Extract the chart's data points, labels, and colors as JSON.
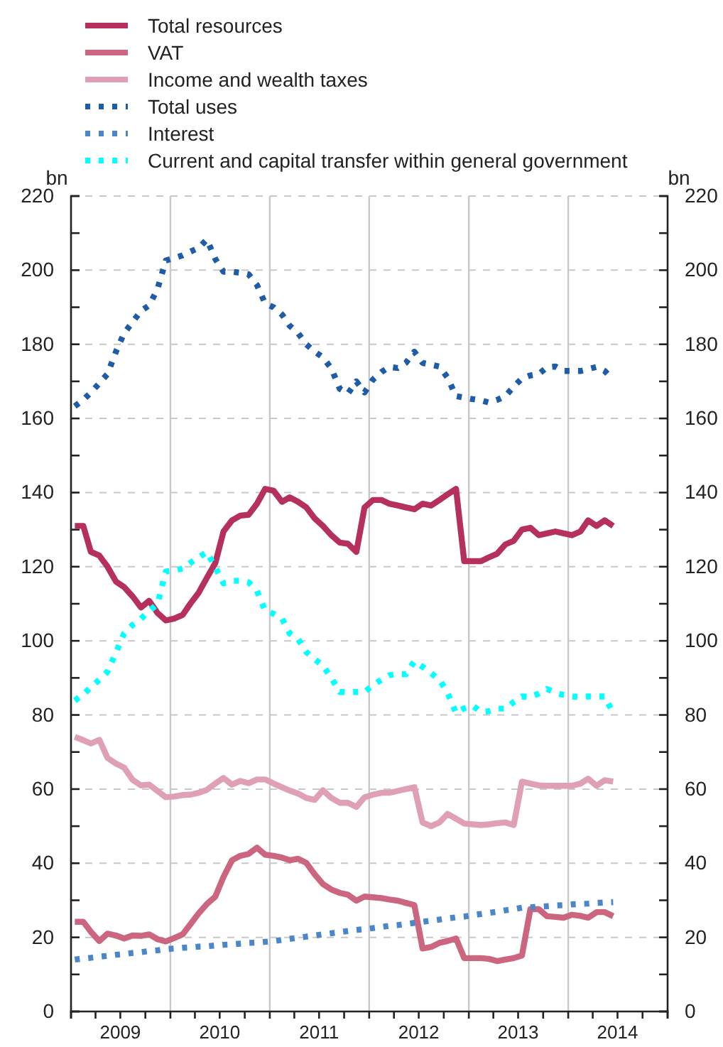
{
  "chart_data": {
    "type": "line",
    "ylabel": "bn",
    "y2label": "bn",
    "x": [
      "2009-01-15",
      "2009-02-15",
      "2009-03-15",
      "2009-04-15",
      "2009-05-15",
      "2009-06-15",
      "2009-07-15",
      "2009-08-15",
      "2009-09-15",
      "2009-10-15",
      "2009-11-15",
      "2009-12-15",
      "2010-01-15",
      "2010-02-15",
      "2010-03-15",
      "2010-04-15",
      "2010-05-15",
      "2010-06-15",
      "2010-07-15",
      "2010-08-15",
      "2010-09-15",
      "2010-10-15",
      "2010-11-15",
      "2010-12-15",
      "2011-01-15",
      "2011-02-15",
      "2011-03-15",
      "2011-04-15",
      "2011-05-15",
      "2011-06-15",
      "2011-07-15",
      "2011-08-15",
      "2011-09-15",
      "2011-10-15",
      "2011-11-15",
      "2011-12-15",
      "2012-01-15",
      "2012-02-15",
      "2012-03-15",
      "2012-04-15",
      "2012-05-15",
      "2012-06-15",
      "2012-07-15",
      "2012-08-15",
      "2012-09-15",
      "2012-10-15",
      "2012-11-15",
      "2012-12-15",
      "2013-01-15",
      "2013-02-15",
      "2013-03-15",
      "2013-04-15",
      "2013-05-15",
      "2013-06-15",
      "2013-07-15",
      "2013-08-15",
      "2013-09-15",
      "2013-10-15",
      "2013-11-15",
      "2013-12-15",
      "2014-01-15",
      "2014-02-15",
      "2014-03-15",
      "2014-04-15",
      "2014-05-15",
      "2014-06-15"
    ],
    "series": [
      {
        "name": "Total resources",
        "color": "#b5305a",
        "line_style": "solid",
        "values": [
          131,
          131,
          124,
          123,
          120,
          116,
          114.5,
          112,
          109,
          110.8,
          107.5,
          105.5,
          106,
          107,
          110,
          113,
          117,
          121,
          129.5,
          132.5,
          133.8,
          134,
          137,
          141,
          140.5,
          137.5,
          138.7,
          137.5,
          136,
          133,
          131,
          128.5,
          126.5,
          126.2,
          124,
          136,
          138,
          138,
          137,
          136.5,
          136,
          135.5,
          137,
          136.5,
          138,
          139.5,
          141,
          121.5,
          121.5,
          121.5,
          122.5,
          123.5,
          126,
          127,
          130,
          130.5,
          128.5,
          129,
          129.5,
          129,
          128.5,
          129.5,
          132.5,
          131,
          132.5,
          131
        ]
      },
      {
        "name": "VAT",
        "color": "#cc6680",
        "line_style": "solid",
        "values": [
          24.2,
          24.2,
          21.5,
          19,
          21,
          20.5,
          19.7,
          20.5,
          20.4,
          20.8,
          19.5,
          18.9,
          19.8,
          20.8,
          23.5,
          26.5,
          29,
          31,
          36.3,
          40.8,
          42,
          42.5,
          44.2,
          42.3,
          42,
          41.5,
          40.8,
          41.2,
          40.1,
          37,
          34.4,
          32.9,
          32,
          31.5,
          29.9,
          31,
          30.8,
          30.6,
          30.2,
          29.9,
          29.3,
          28.7,
          17,
          17.4,
          18.5,
          19,
          19.7,
          14.4,
          14.4,
          14.4,
          14.2,
          13.6,
          14,
          14.4,
          15.1,
          27.6,
          27.6,
          25.7,
          25.5,
          25.3,
          26.1,
          25.8,
          25.3,
          26.8,
          26.8,
          25.7
        ]
      },
      {
        "name": "Income and wealth taxes",
        "color": "#e0a0b4",
        "line_style": "solid",
        "values": [
          74.1,
          73.2,
          72.3,
          73.3,
          68.4,
          66.9,
          65.8,
          62.5,
          61,
          61.2,
          59.5,
          57.8,
          58,
          58.4,
          58.5,
          59,
          59.8,
          61.5,
          63,
          61.2,
          62.2,
          61.6,
          62.6,
          62.6,
          61.5,
          60.5,
          59.6,
          58.8,
          57.6,
          57.1,
          59.7,
          57.6,
          56.3,
          56.3,
          55.2,
          57.8,
          58.5,
          59,
          59,
          59.5,
          60,
          60.5,
          51,
          50,
          51,
          53.3,
          52,
          50.7,
          50.5,
          50.3,
          50.5,
          50.8,
          51,
          50.3,
          62,
          61.5,
          61,
          60.9,
          60.9,
          60.9,
          60.9,
          61.5,
          62.8,
          60.9,
          62.4,
          62
        ]
      },
      {
        "name": "Total uses",
        "color": "#1f5ca8",
        "line_style": "dotted",
        "values": [
          163.3,
          165,
          167,
          169.5,
          172,
          178,
          183,
          186,
          189,
          190.5,
          195,
          202.6,
          203.3,
          204,
          205,
          206,
          208.3,
          203,
          199.6,
          199.6,
          199.3,
          198.9,
          196,
          191,
          190,
          188,
          185,
          183,
          180,
          178,
          176.5,
          173.5,
          168,
          166.7,
          170,
          167,
          170.5,
          172.5,
          173.9,
          173.6,
          175,
          178,
          175,
          174.5,
          174,
          171,
          166,
          165.6,
          165.2,
          164.9,
          164.3,
          165,
          166,
          168.6,
          170.8,
          171.6,
          172,
          173.8,
          174,
          172.8,
          172.8,
          172.8,
          173.3,
          173.9,
          172.8,
          170.5
        ]
      },
      {
        "name": "Interest",
        "color": "#4a86c8",
        "line_style": "dotted",
        "values": [
          14,
          14.3,
          14.5,
          14.8,
          15,
          15.3,
          15.5,
          15.8,
          16,
          16.3,
          16.5,
          16.8,
          17,
          17.2,
          17.3,
          17.5,
          17.6,
          17.8,
          18,
          18.1,
          18.3,
          18.5,
          18.6,
          18.8,
          19,
          19.3,
          19.6,
          19.9,
          20.2,
          20.5,
          20.8,
          21.1,
          21.4,
          21.7,
          22,
          22.2,
          22.5,
          22.8,
          23.1,
          23.3,
          23.6,
          23.9,
          24.2,
          24.5,
          24.8,
          25.1,
          25.4,
          25.6,
          26,
          26.3,
          26.6,
          26.9,
          27.3,
          27.6,
          28,
          28.1,
          28.3,
          28.4,
          28.6,
          28.7,
          28.9,
          29,
          29.1,
          29.3,
          29.4,
          29.5
        ]
      },
      {
        "name": "Current and capital transfer within general government",
        "color": "#00ffff",
        "line_style": "dotted",
        "values": [
          83.9,
          85.5,
          87.5,
          89.5,
          91.7,
          96.8,
          102,
          104.3,
          106,
          108,
          110,
          118.7,
          119,
          119.5,
          121,
          122.5,
          124,
          119.8,
          115.5,
          116.2,
          116.2,
          115.8,
          113.5,
          108.1,
          107.3,
          106,
          102,
          100.5,
          97,
          95,
          93.4,
          90,
          86.2,
          86.2,
          86.2,
          86.2,
          88,
          89.5,
          90.7,
          91,
          91,
          94.5,
          93,
          91.3,
          89.5,
          86,
          80.5,
          81.8,
          82.5,
          80.8,
          81,
          81.7,
          81.7,
          83.5,
          85,
          84.8,
          85.8,
          87,
          86,
          85.4,
          85,
          84.8,
          85,
          85,
          85,
          80.5
        ]
      }
    ],
    "xlim": [
      "2009-01-01",
      "2015-01-01"
    ],
    "xticks": [
      {
        "value": "2009-01-01",
        "label": null
      },
      {
        "value": "2009-04-01",
        "label": null
      },
      {
        "value": "2009-07-01",
        "label": "2009"
      },
      {
        "value": "2009-10-01",
        "label": null
      },
      {
        "value": "2010-01-01",
        "label": null
      },
      {
        "value": "2010-04-01",
        "label": null
      },
      {
        "value": "2010-07-01",
        "label": "2010"
      },
      {
        "value": "2010-10-01",
        "label": null
      },
      {
        "value": "2011-01-01",
        "label": null
      },
      {
        "value": "2011-04-01",
        "label": null
      },
      {
        "value": "2011-07-01",
        "label": "2011"
      },
      {
        "value": "2011-10-01",
        "label": null
      },
      {
        "value": "2012-01-01",
        "label": null
      },
      {
        "value": "2012-04-01",
        "label": null
      },
      {
        "value": "2012-07-01",
        "label": "2012"
      },
      {
        "value": "2012-10-01",
        "label": null
      },
      {
        "value": "2013-01-01",
        "label": null
      },
      {
        "value": "2013-04-01",
        "label": null
      },
      {
        "value": "2013-07-01",
        "label": "2013"
      },
      {
        "value": "2013-10-01",
        "label": null
      },
      {
        "value": "2014-01-01",
        "label": null
      },
      {
        "value": "2014-04-01",
        "label": null
      },
      {
        "value": "2014-07-01",
        "label": "2014"
      },
      {
        "value": "2014-10-01",
        "label": null
      },
      {
        "value": "2015-01-01",
        "label": null
      }
    ],
    "ylim": [
      0,
      220
    ],
    "yticks": [
      0,
      {
        "value": 10,
        "label": null
      },
      20,
      {
        "value": 30,
        "label": null
      },
      40,
      {
        "value": 50,
        "label": null
      },
      60,
      {
        "value": 70,
        "label": null
      },
      80,
      {
        "value": 90,
        "label": null
      },
      100,
      {
        "value": 110,
        "label": null
      },
      120,
      {
        "value": 130,
        "label": null
      },
      140,
      {
        "value": 150,
        "label": null
      },
      160,
      {
        "value": 170,
        "label": null
      },
      180,
      {
        "value": 190,
        "label": null
      },
      200,
      {
        "value": 210,
        "label": null
      },
      220
    ],
    "y2lim": [
      0,
      220
    ],
    "y2ticks": [
      0,
      {
        "value": 10,
        "label": null
      },
      20,
      {
        "value": 30,
        "label": null
      },
      40,
      {
        "value": 50,
        "label": null
      },
      60,
      {
        "value": 70,
        "label": null
      },
      80,
      {
        "value": 90,
        "label": null
      },
      100,
      {
        "value": 110,
        "label": null
      },
      120,
      {
        "value": 130,
        "label": null
      },
      140,
      {
        "value": 150,
        "label": null
      },
      160,
      {
        "value": 170,
        "label": null
      },
      180,
      {
        "value": 190,
        "label": null
      },
      200,
      {
        "value": 210,
        "label": null
      },
      220
    ],
    "ref_lines": [
      {
        "axis": "x",
        "value": "2010-01-01",
        "color": "#c8c8c8"
      },
      {
        "axis": "x",
        "value": "2011-01-01",
        "color": "#c8c8c8"
      },
      {
        "axis": "x",
        "value": "2012-01-01",
        "color": "#c8c8c8"
      },
      {
        "axis": "x",
        "value": "2013-01-01",
        "color": "#c8c8c8"
      },
      {
        "axis": "x",
        "value": "2014-01-01",
        "color": "#c8c8c8"
      }
    ],
    "grid": "y",
    "legend": "top left"
  }
}
